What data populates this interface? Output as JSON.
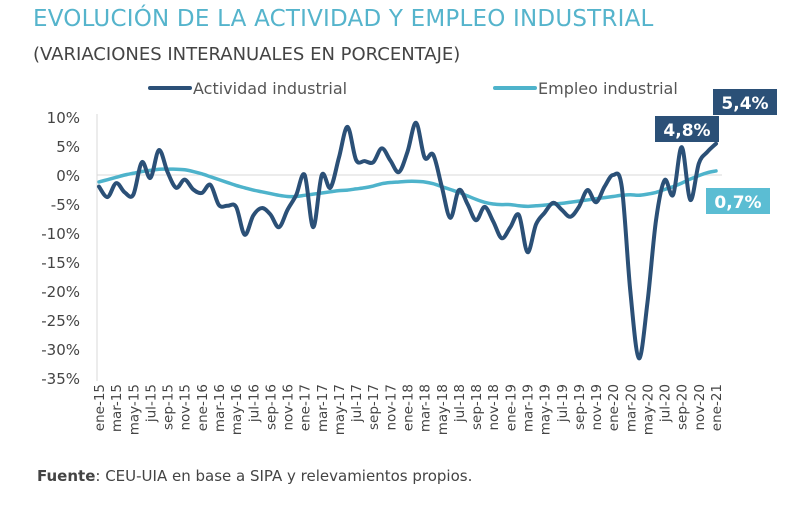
{
  "chart_data": {
    "type": "line",
    "title": "EVOLUCIÓN DE LA ACTIVIDAD Y EMPLEO INDUSTRIAL",
    "subtitle": "(VARIACIONES INTERANUALES EN PORCENTAJE)",
    "source_label": "Fuente",
    "source_text": ": CEU-UIA en base a SIPA y relevamientos propios.",
    "ylim": [
      -35,
      10
    ],
    "yticks": [
      "10%",
      "5%",
      "0%",
      "-5%",
      "-10%",
      "-15%",
      "-20%",
      "-25%",
      "-30%",
      "-35%"
    ],
    "ytick_values": [
      10,
      5,
      0,
      -5,
      -10,
      -15,
      -20,
      -25,
      -30,
      -35
    ],
    "x_tick_labels": [
      "ene-15",
      "mar-15",
      "may-15",
      "jul-15",
      "sep-15",
      "nov-15",
      "ene-16",
      "mar-16",
      "may-16",
      "jul-16",
      "sep-16",
      "nov-16",
      "ene-17",
      "mar-17",
      "may-17",
      "jul-17",
      "sep-17",
      "nov-17",
      "ene-18",
      "mar-18",
      "may-18",
      "jul-18",
      "sep-18",
      "nov-18",
      "ene-19",
      "mar-19",
      "may-19",
      "jul-19",
      "sep-19",
      "nov-19",
      "ene-20",
      "mar-20",
      "may-20",
      "jul-20",
      "sep-20",
      "nov-20",
      "ene-21"
    ],
    "x_range": [
      "ene-15",
      "ene-21"
    ],
    "frequency": "monthly",
    "legend": "top",
    "grid": false,
    "series": [
      {
        "name": "Actividad industrial",
        "color": "#2b5077",
        "values": [
          -2.0,
          -3.8,
          -1.4,
          -3.0,
          -3.4,
          2.2,
          -0.5,
          4.3,
          0.5,
          -2.2,
          -0.8,
          -2.5,
          -3.1,
          -1.7,
          -5.2,
          -5.3,
          -5.5,
          -10.3,
          -7,
          -5.7,
          -6.8,
          -9,
          -6,
          -3.5,
          0,
          -9,
          0,
          -2.2,
          3,
          8.3,
          2.6,
          2.4,
          2.2,
          4.6,
          2.5,
          0.5,
          4,
          9,
          3,
          3.5,
          -2,
          -7.4,
          -2.6,
          -5,
          -7.8,
          -5.5,
          -8,
          -10.9,
          -9,
          -6.9,
          -13.3,
          -8.5,
          -6.5,
          -4.8,
          -6,
          -7.2,
          -5.5,
          -2.6,
          -4.7,
          -2,
          0,
          -2,
          -20,
          -31.6,
          -22,
          -7.8,
          -0.9,
          -3.4,
          4.8,
          -4.3,
          2,
          4,
          5.4
        ]
      },
      {
        "name": "Empleo industrial",
        "color": "#4eb3cb",
        "values": [
          -1.2,
          -0.8,
          -0.4,
          0,
          0.3,
          0.6,
          0.8,
          1.0,
          1.0,
          1.0,
          0.9,
          0.6,
          0.2,
          -0.3,
          -0.8,
          -1.3,
          -1.8,
          -2.2,
          -2.6,
          -2.9,
          -3.2,
          -3.5,
          -3.7,
          -3.7,
          -3.5,
          -3.3,
          -3.1,
          -2.9,
          -2.7,
          -2.6,
          -2.4,
          -2.2,
          -1.9,
          -1.5,
          -1.3,
          -1.2,
          -1.1,
          -1.1,
          -1.2,
          -1.5,
          -2.0,
          -2.5,
          -3.0,
          -3.6,
          -4.2,
          -4.7,
          -5.0,
          -5.1,
          -5.1,
          -5.3,
          -5.4,
          -5.3,
          -5.2,
          -5.0,
          -4.9,
          -4.7,
          -4.5,
          -4.3,
          -4.1,
          -3.9,
          -3.7,
          -3.5,
          -3.4,
          -3.5,
          -3.3,
          -3.0,
          -2.5,
          -2.0,
          -1.4,
          -0.7,
          -0.1,
          0.4,
          0.7
        ]
      }
    ],
    "annotations": [
      {
        "text": "4,8%",
        "series": "Actividad industrial",
        "x": "sep-20",
        "value": 4.8,
        "color": "#2b5077"
      },
      {
        "text": "5,4%",
        "series": "Actividad industrial",
        "x": "ene-21",
        "value": 5.4,
        "color": "#2b5077"
      },
      {
        "text": "0,7%",
        "series": "Empleo industrial",
        "x": "ene-21",
        "value": 0.7,
        "color": "#5bbdd3"
      }
    ]
  }
}
